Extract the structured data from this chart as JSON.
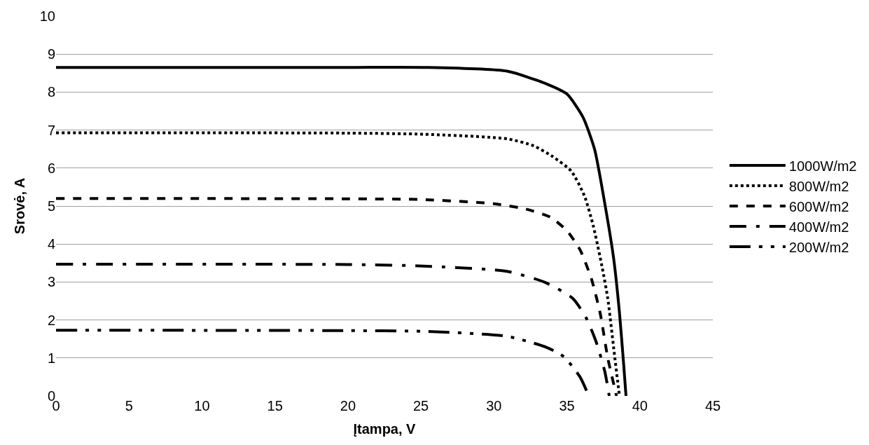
{
  "chart_data": {
    "type": "line",
    "xlabel": "Įtampa, V",
    "ylabel": "Srovė, A",
    "xlim": [
      0,
      45
    ],
    "xticks": [
      0,
      5,
      10,
      15,
      20,
      25,
      30,
      35,
      40,
      45
    ],
    "ylim": [
      0,
      10
    ],
    "yticks": [
      0,
      1,
      2,
      3,
      4,
      5,
      6,
      7,
      8,
      9,
      10
    ],
    "grid": "y",
    "legend": "right",
    "marker": "none",
    "series": [
      {
        "name": "1000W/m2",
        "color": "#000000",
        "line_style": "solid",
        "x": [
          0,
          20,
          25.2,
          30.9,
          33.7,
          35.0,
          36.1,
          36.9,
          37.6,
          38.2,
          38.6,
          38.9,
          39.05
        ],
        "values": [
          8.65,
          8.65,
          8.65,
          8.55,
          8.2,
          7.95,
          7.34,
          6.49,
          5.06,
          3.63,
          2.2,
          0.78,
          0
        ]
      },
      {
        "name": "800W/m2",
        "color": "#000000",
        "line_style": "dotted",
        "x": [
          0,
          20,
          25.2,
          30.9,
          32.7,
          34.0,
          35.3,
          36.2,
          36.8,
          37.4,
          37.8,
          38.2,
          38.6
        ],
        "values": [
          6.93,
          6.92,
          6.89,
          6.77,
          6.59,
          6.31,
          5.92,
          5.27,
          4.49,
          3.42,
          2.57,
          1.28,
          0
        ]
      },
      {
        "name": "600W/m2",
        "color": "#000000",
        "line_style": "dashed",
        "x": [
          0,
          20,
          25.2,
          30.0,
          32.2,
          33.9,
          35.0,
          35.9,
          36.7,
          37.3,
          37.8,
          38.4
        ],
        "values": [
          5.2,
          5.19,
          5.17,
          5.06,
          4.92,
          4.7,
          4.35,
          3.85,
          3.06,
          2.14,
          1.0,
          0
        ]
      },
      {
        "name": "400W/m2",
        "color": "#000000",
        "line_style": "dashdot",
        "x": [
          0,
          20,
          25.2,
          30.9,
          33.5,
          35.4,
          36.3,
          37.0,
          37.6,
          37.9
        ],
        "values": [
          3.47,
          3.46,
          3.42,
          3.28,
          2.99,
          2.57,
          2.07,
          1.43,
          0.64,
          0
        ]
      },
      {
        "name": "200W/m2",
        "color": "#000000",
        "line_style": "longdashdotdot",
        "x": [
          0,
          20,
          25.2,
          30.9,
          33.6,
          34.8,
          35.9,
          36.5
        ],
        "values": [
          1.73,
          1.72,
          1.7,
          1.57,
          1.28,
          1.03,
          0.5,
          0
        ]
      }
    ]
  }
}
